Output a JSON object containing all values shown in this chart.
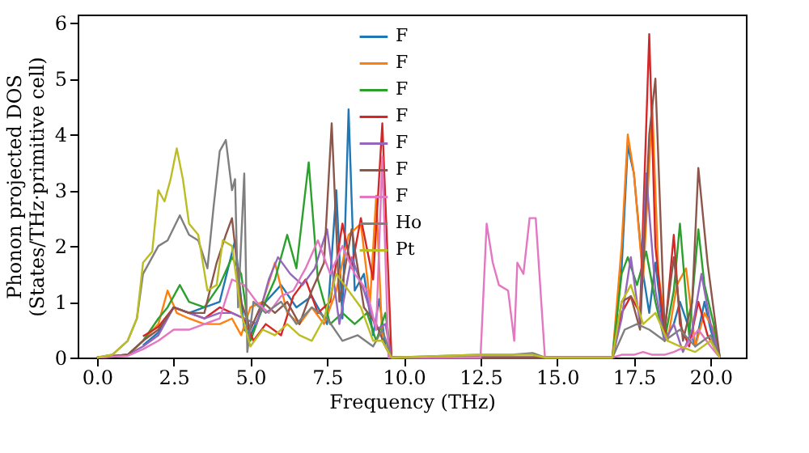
{
  "chart_data": {
    "type": "line",
    "xlabel": "Frequency (THz)",
    "ylabel": "Phonon projected DOS\n(States/THz·primitive cell)",
    "xlim": [
      -0.63,
      21.15
    ],
    "ylim": [
      0,
      6.15
    ],
    "xticks": [
      {
        "value": 0,
        "label": "0.0"
      },
      2.5,
      {
        "value": 5,
        "label": "5.0"
      },
      7.5,
      {
        "value": 10,
        "label": "10.0"
      },
      12.5,
      {
        "value": 15,
        "label": "15.0"
      },
      17.5,
      {
        "value": 20,
        "label": "20.0"
      }
    ],
    "yticks": [
      0,
      1,
      2,
      3,
      4,
      5,
      6
    ],
    "grid": false,
    "legend": "top",
    "line_style": "solid",
    "marker": "none",
    "series": [
      {
        "name": "F",
        "color": "#1f77b4",
        "x": [
          1.5,
          2,
          2.5,
          3,
          3.5,
          4,
          4.5,
          4.8,
          5,
          5.5,
          6,
          6.5,
          7,
          7.5,
          7.8,
          8,
          8.2,
          8.4,
          8.7,
          9,
          9.2,
          9.4,
          9.6,
          16.8,
          17.1,
          17.3,
          17.5,
          17.8,
          18,
          18.2,
          18.5,
          18.8,
          19,
          19.5,
          19.8,
          20,
          20.3
        ],
        "values": [
          0.22,
          0.45,
          0.9,
          0.8,
          0.9,
          1.0,
          2.1,
          0.5,
          0.4,
          1.0,
          1.3,
          0.9,
          1.1,
          0.6,
          3.0,
          0.7,
          4.45,
          1.2,
          1.5,
          0.4,
          1.05,
          0.2,
          0,
          0,
          1.6,
          3.8,
          3.3,
          1.5,
          0.8,
          1.7,
          0.3,
          0.6,
          1.0,
          0.2,
          1.0,
          0.5,
          0
        ]
      },
      {
        "name": "F",
        "color": "#ff7f0e",
        "x": [
          0,
          1,
          1.5,
          2,
          2.3,
          2.6,
          3,
          3.5,
          4,
          4.4,
          4.7,
          5,
          5.4,
          5.8,
          6.2,
          6.6,
          7,
          7.4,
          7.8,
          8.2,
          8.6,
          8.9,
          9.1,
          9.3,
          9.6,
          16.8,
          17.1,
          17.3,
          17.5,
          17.8,
          18.1,
          18.3,
          18.6,
          18.9,
          19.2,
          19.5,
          19.8,
          20.1,
          20.3
        ],
        "values": [
          0,
          0.05,
          0.3,
          0.6,
          1.2,
          0.8,
          0.7,
          0.6,
          0.6,
          0.7,
          0.4,
          0.9,
          1.0,
          1.7,
          0.8,
          0.6,
          0.9,
          0.6,
          1.2,
          2.2,
          2.4,
          1.0,
          2.9,
          0.3,
          0,
          0,
          2.0,
          4.0,
          3.3,
          1.4,
          4.5,
          1.5,
          0.3,
          1.3,
          1.6,
          0.2,
          0.8,
          0.5,
          0
        ]
      },
      {
        "name": "F",
        "color": "#2ca02c",
        "x": [
          0,
          1,
          1.5,
          2,
          2.3,
          2.7,
          3,
          3.5,
          4,
          4.4,
          4.7,
          5,
          5.4,
          5.8,
          6.2,
          6.5,
          6.9,
          7.2,
          7.6,
          8,
          8.4,
          8.8,
          9.1,
          9.4,
          9.6,
          16.8,
          17.1,
          17.3,
          17.6,
          17.9,
          18.2,
          18.5,
          18.8,
          19.0,
          19.3,
          19.6,
          19.8,
          20.1,
          20.3
        ],
        "values": [
          0,
          0.05,
          0.3,
          0.7,
          0.9,
          1.3,
          1.0,
          0.9,
          1.3,
          1.8,
          1.5,
          0.3,
          0.9,
          1.4,
          2.2,
          1.6,
          3.5,
          1.4,
          0.6,
          0.8,
          0.6,
          0.8,
          0.3,
          0.8,
          0,
          0,
          1.5,
          1.8,
          1.3,
          1.9,
          1.0,
          0.3,
          1.2,
          2.4,
          0.4,
          2.3,
          1.3,
          0.6,
          0
        ]
      },
      {
        "name": "F",
        "color": "#d62728",
        "x": [
          1.5,
          2,
          2.5,
          3,
          3.5,
          4,
          4.4,
          4.8,
          5.1,
          5.5,
          6,
          6.4,
          6.8,
          7.2,
          7.6,
          8,
          8.3,
          8.6,
          9,
          9.3,
          9.6,
          16.8,
          17.1,
          17.4,
          17.7,
          18.0,
          18.2,
          18.5,
          18.8,
          19.0,
          19.3,
          19.6,
          19.9,
          20.3
        ],
        "values": [
          0.38,
          0.55,
          0.9,
          0.8,
          0.7,
          0.9,
          0.8,
          0.7,
          0.3,
          0.6,
          0.4,
          1.1,
          1.4,
          0.8,
          1.0,
          2.4,
          1.6,
          2.5,
          1.4,
          4.2,
          0,
          0,
          0.8,
          1.1,
          0.8,
          5.8,
          2.0,
          0.4,
          2.2,
          0.6,
          0.2,
          1.0,
          0.4,
          0
        ]
      },
      {
        "name": "F",
        "color": "#9467bd",
        "x": [
          0,
          1,
          1.5,
          2,
          2.5,
          3,
          3.5,
          4,
          4.4,
          4.8,
          5.2,
          5.6,
          5.9,
          6.3,
          6.7,
          7.1,
          7.5,
          7.9,
          8.3,
          8.7,
          9.1,
          9.4,
          9.6,
          16.8,
          17.1,
          17.4,
          17.7,
          17.9,
          18.2,
          18.5,
          18.8,
          19.1,
          19.4,
          19.7,
          20,
          20.3
        ],
        "values": [
          0,
          0.05,
          0.2,
          0.4,
          0.9,
          0.8,
          0.7,
          0.8,
          0.8,
          0.7,
          0.6,
          1.4,
          1.8,
          1.5,
          1.3,
          1.6,
          2.3,
          0.6,
          1.8,
          1.2,
          0.5,
          0.6,
          0,
          0,
          0.7,
          1.8,
          0.6,
          3.3,
          1.2,
          0.3,
          0.6,
          0.1,
          0.5,
          1.5,
          0.6,
          0
        ]
      },
      {
        "name": "F",
        "color": "#8c564b",
        "x": [
          0,
          1,
          1.5,
          2,
          2.5,
          3,
          3.5,
          3.9,
          4.2,
          4.4,
          4.7,
          5,
          5.4,
          5.8,
          6.2,
          6.6,
          7,
          7.4,
          7.65,
          7.9,
          8.3,
          8.7,
          9.1,
          9.4,
          9.6,
          16.8,
          17.1,
          17.4,
          17.7,
          18.0,
          18.2,
          18.5,
          18.8,
          19.1,
          19.4,
          19.6,
          19.9,
          20.3
        ],
        "values": [
          0,
          0.05,
          0.3,
          0.5,
          0.9,
          0.8,
          0.8,
          1.7,
          2.2,
          2.5,
          1.0,
          0.5,
          1.0,
          0.8,
          1.0,
          0.6,
          1.2,
          1.7,
          4.2,
          1.0,
          2.3,
          0.9,
          0.6,
          0.2,
          0,
          0,
          1.0,
          1.1,
          0.5,
          4.0,
          5.0,
          0.5,
          1.8,
          0.3,
          1.0,
          3.4,
          1.7,
          0
        ]
      },
      {
        "name": "F",
        "color": "#e377c2",
        "x": [
          0,
          1,
          1.5,
          2,
          2.5,
          3,
          3.5,
          4,
          4.4,
          4.8,
          5.2,
          5.6,
          6,
          6.4,
          6.8,
          7.2,
          7.6,
          8,
          8.4,
          8.8,
          9.1,
          9.3,
          9.5,
          12.5,
          12.7,
          12.9,
          13.1,
          13.4,
          13.6,
          13.7,
          13.9,
          14.1,
          14.3,
          14.6,
          16.8,
          17.1,
          17.5,
          17.8,
          18.1,
          18.5,
          18.8,
          19.2,
          19.6,
          20,
          20.3
        ],
        "values": [
          0,
          0.03,
          0.15,
          0.3,
          0.5,
          0.5,
          0.6,
          0.7,
          1.4,
          1.3,
          1.0,
          0.8,
          1.1,
          1.2,
          1.6,
          2.1,
          1.5,
          2.0,
          1.5,
          1.2,
          0.5,
          3.6,
          0,
          0,
          2.4,
          1.7,
          1.3,
          1.2,
          0.3,
          1.7,
          1.5,
          2.5,
          2.5,
          0,
          0,
          0.05,
          0.05,
          0.1,
          0.05,
          0.05,
          0.1,
          0.2,
          0.5,
          0.2,
          0
        ]
      },
      {
        "name": "Ho",
        "color": "#7f7f7f",
        "x": [
          0,
          0.5,
          1,
          1.3,
          1.5,
          2,
          2.3,
          2.7,
          3,
          3.3,
          3.6,
          3.8,
          4.0,
          4.2,
          4.4,
          4.5,
          4.6,
          4.8,
          4.9,
          5.1,
          5.5,
          6,
          6.5,
          7,
          7.5,
          8,
          8.5,
          9,
          9.3,
          9.6,
          12.5,
          13.5,
          14.2,
          14.6,
          16.8,
          17.2,
          17.6,
          18,
          18.5,
          19,
          19.5,
          20,
          20.3
        ],
        "values": [
          0,
          0.05,
          0.3,
          0.7,
          1.5,
          2.0,
          2.1,
          2.55,
          2.2,
          2.1,
          1.6,
          2.7,
          3.7,
          3.9,
          3.0,
          3.2,
          0.9,
          3.3,
          0.1,
          1.0,
          0.8,
          1.0,
          0.6,
          0.9,
          0.7,
          0.3,
          0.4,
          0.2,
          0.5,
          0,
          0.05,
          0.05,
          0.08,
          0,
          0,
          0.5,
          0.6,
          0.5,
          0.3,
          0.5,
          0.2,
          0.4,
          0
        ]
      },
      {
        "name": "Pt",
        "color": "#bcbd22",
        "x": [
          0,
          0.5,
          1,
          1.3,
          1.5,
          1.8,
          2.0,
          2.2,
          2.4,
          2.6,
          2.8,
          3,
          3.3,
          3.6,
          3.9,
          4.1,
          4.4,
          4.7,
          5,
          5.4,
          5.8,
          6.2,
          6.6,
          7,
          7.4,
          7.8,
          8.2,
          8.6,
          9,
          9.3,
          9.6,
          12.5,
          13.5,
          14.2,
          14.6,
          16.8,
          17.1,
          17.4,
          17.8,
          18.2,
          18.6,
          19,
          19.5,
          20,
          20.3
        ],
        "values": [
          0,
          0.05,
          0.3,
          0.7,
          1.7,
          1.9,
          3.0,
          2.8,
          3.2,
          3.75,
          3.2,
          2.4,
          2.2,
          1.2,
          1.3,
          2.1,
          2.0,
          0.8,
          0.2,
          0.5,
          0.4,
          0.6,
          0.4,
          0.3,
          0.7,
          1.5,
          1.2,
          0.9,
          0.3,
          0.3,
          0,
          0.05,
          0.05,
          0.05,
          0,
          0,
          1.0,
          1.3,
          0.6,
          0.8,
          0.3,
          0.2,
          0.1,
          0.3,
          0
        ]
      }
    ]
  }
}
